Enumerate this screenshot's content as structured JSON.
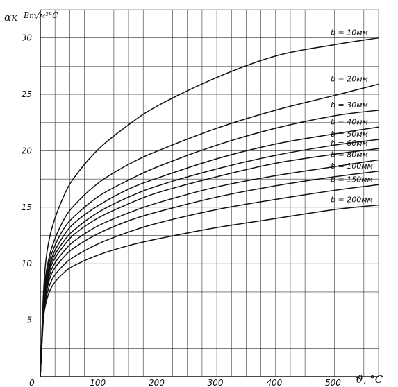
{
  "chart_data": {
    "type": "line",
    "ylabel_symbol": "αк",
    "ylabel_unit": "Вт/м²°С",
    "xlabel": "ϑ, °C",
    "xlim": [
      0,
      575
    ],
    "ylim": [
      0,
      32.5
    ],
    "grid": true,
    "x_ticks": [
      {
        "value": 0,
        "label": "0"
      },
      {
        "value": 100,
        "label": "100"
      },
      {
        "value": 200,
        "label": "200"
      },
      {
        "value": 300,
        "label": "300"
      },
      {
        "value": 400,
        "label": "400"
      },
      {
        "value": 500,
        "label": "500"
      }
    ],
    "y_ticks": [
      {
        "value": 5,
        "label": "5"
      },
      {
        "value": 10,
        "label": "10"
      },
      {
        "value": 15,
        "label": "15"
      },
      {
        "value": 20,
        "label": "20"
      },
      {
        "value": 25,
        "label": "25"
      },
      {
        "value": 30,
        "label": "30"
      }
    ],
    "x": [
      0,
      5,
      10,
      20,
      40,
      60,
      100,
      150,
      200,
      300,
      400,
      500,
      575
    ],
    "series": [
      {
        "name": "b = 10мм",
        "values": [
          0,
          7.0,
          10.5,
          13.2,
          16.0,
          17.8,
          20.2,
          22.3,
          24.0,
          26.5,
          28.4,
          29.4,
          30.0
        ]
      },
      {
        "name": "b = 20мм",
        "values": [
          0,
          6.4,
          9.2,
          11.5,
          13.9,
          15.3,
          17.2,
          18.8,
          20.0,
          22.0,
          23.6,
          24.9,
          25.9
        ]
      },
      {
        "name": "b = 30мм",
        "values": [
          0,
          6.2,
          8.9,
          11.0,
          13.1,
          14.3,
          16.0,
          17.4,
          18.6,
          20.5,
          22.0,
          23.1,
          23.6
        ]
      },
      {
        "name": "b = 40мм",
        "values": [
          0,
          6.0,
          8.5,
          10.6,
          12.5,
          13.7,
          15.2,
          16.6,
          17.6,
          19.3,
          20.6,
          21.5,
          22.1
        ]
      },
      {
        "name": "b = 50мм",
        "values": [
          0,
          5.8,
          8.3,
          10.3,
          12.0,
          13.1,
          14.6,
          15.9,
          16.9,
          18.4,
          19.6,
          20.5,
          21.0
        ]
      },
      {
        "name": "b = 60мм",
        "values": [
          0,
          5.6,
          8.0,
          10.0,
          11.6,
          12.7,
          14.1,
          15.3,
          16.3,
          17.7,
          18.9,
          19.7,
          20.2
        ]
      },
      {
        "name": "b = 80мм",
        "values": [
          0,
          5.4,
          7.7,
          9.6,
          11.1,
          12.1,
          13.4,
          14.5,
          15.4,
          16.8,
          17.8,
          18.6,
          19.2
        ]
      },
      {
        "name": "b = 100мм",
        "values": [
          0,
          5.2,
          7.4,
          9.2,
          10.6,
          11.5,
          12.7,
          13.8,
          14.6,
          15.9,
          16.9,
          17.7,
          18.2
        ]
      },
      {
        "name": "b = 150мм",
        "values": [
          0,
          5.0,
          7.0,
          8.6,
          9.9,
          10.7,
          11.8,
          12.8,
          13.6,
          14.8,
          15.7,
          16.5,
          17.0
        ]
      },
      {
        "name": "b = 200мм",
        "values": [
          0,
          4.8,
          6.6,
          8.0,
          9.2,
          9.9,
          10.8,
          11.6,
          12.2,
          13.2,
          14.0,
          14.8,
          15.2
        ]
      }
    ],
    "labels": [
      "b = 10мм",
      "b = 20мм",
      "b = 30мм",
      "b = 40мм",
      "b = 50мм",
      "b = 60мм",
      "b = 80мм",
      "b = 100мм",
      "b = 150мм",
      "b = 200мм"
    ],
    "colors": {
      "ink": "#111111",
      "grid": "#333333",
      "background": "#ffffff"
    }
  }
}
